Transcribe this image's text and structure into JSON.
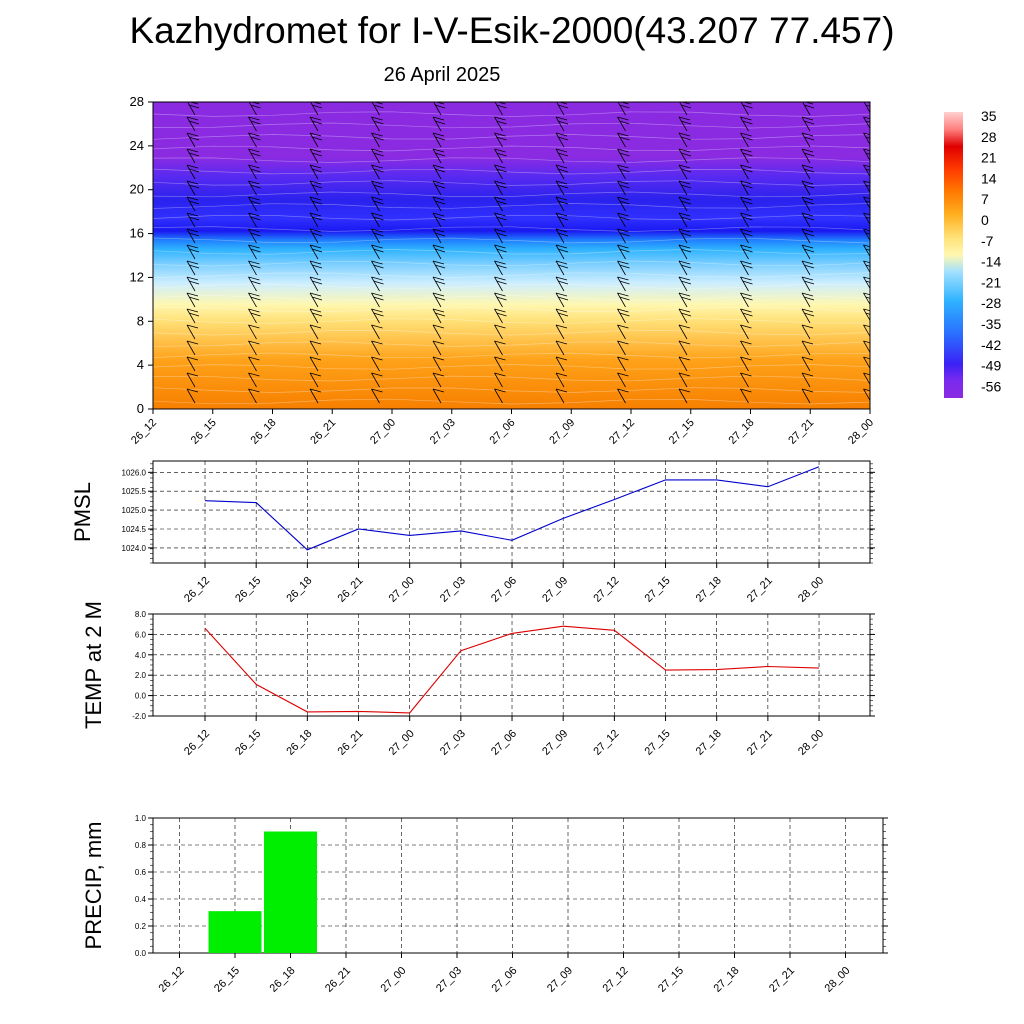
{
  "title": "Kazhydromet for I-V-Esik-2000(43.207 77.457)",
  "subtitle": "26 April 2025",
  "time_labels": [
    "26_12",
    "26_15",
    "26_18",
    "26_21",
    "27_00",
    "27_03",
    "27_06",
    "27_09",
    "27_12",
    "27_15",
    "27_18",
    "27_21",
    "28_00"
  ],
  "chart_data": [
    {
      "type": "heatmap",
      "name": "cross-section",
      "x": [
        "26_12",
        "26_15",
        "26_18",
        "26_21",
        "27_00",
        "27_03",
        "27_06",
        "27_09",
        "27_12",
        "27_15",
        "27_18",
        "27_21",
        "28_00"
      ],
      "y_ticks": [
        0,
        4,
        8,
        12,
        16,
        20,
        24,
        28
      ],
      "ylim": [
        0,
        28
      ],
      "colorbar_labels": [
        "35",
        "28",
        "21",
        "14",
        "7",
        "0",
        "-7",
        "-14",
        "-21",
        "-28",
        "-35",
        "-42",
        "-49",
        "-56"
      ],
      "colors": {
        "warm": "#f77f00",
        "yellow": "#ffe27a",
        "light": "#cdeeff",
        "cyan": "#2fb3ff",
        "blue": "#1a18f0",
        "purple": "#8a2be2"
      },
      "wind_barbs": true
    },
    {
      "type": "line",
      "name": "PMSL",
      "ylabel": "PMSL",
      "x": [
        "26_12",
        "26_15",
        "26_18",
        "26_21",
        "27_00",
        "27_03",
        "27_06",
        "27_09",
        "27_12",
        "27_15",
        "27_18",
        "27_21",
        "28_00"
      ],
      "values": [
        1025.25,
        1025.2,
        1023.95,
        1024.5,
        1024.33,
        1024.45,
        1024.2,
        1024.78,
        1025.28,
        1025.8,
        1025.8,
        1025.62,
        1026.15
      ],
      "ylim": [
        1023.6,
        1026.3
      ],
      "y_ticks": [
        1024.0,
        1024.5,
        1025.0,
        1025.5,
        1026.0
      ],
      "y_tick_labels": [
        "1024.0",
        "1024.5",
        "1025.0",
        "1025.5",
        "1026.0"
      ],
      "color": "#0000cc",
      "grid": true
    },
    {
      "type": "line",
      "name": "TEMP at 2 M",
      "ylabel": "TEMP at 2 M",
      "x": [
        "26_12",
        "26_15",
        "26_18",
        "26_21",
        "27_00",
        "27_03",
        "27_06",
        "27_09",
        "27_12",
        "27_15",
        "27_18",
        "27_21",
        "28_00"
      ],
      "values": [
        6.6,
        1.1,
        -1.6,
        -1.55,
        -1.7,
        4.4,
        6.1,
        6.8,
        6.4,
        2.5,
        2.55,
        2.85,
        2.7
      ],
      "ylim": [
        -2.0,
        8.0
      ],
      "y_ticks": [
        -2.0,
        0.0,
        2.0,
        4.0,
        6.0,
        8.0
      ],
      "y_tick_labels": [
        "-2.0",
        "0.0",
        "2.0",
        "4.0",
        "6.0",
        "8.0"
      ],
      "color": "#dd0000",
      "grid": true
    },
    {
      "type": "bar",
      "name": "PRECIP, mm",
      "ylabel": "PRECIP, mm",
      "categories": [
        "26_12",
        "26_15",
        "26_18",
        "26_21",
        "27_00",
        "27_03",
        "27_06",
        "27_09",
        "27_12",
        "27_15",
        "27_18",
        "27_21",
        "28_00"
      ],
      "values": [
        0,
        0.31,
        0.9,
        0,
        0,
        0,
        0,
        0,
        0,
        0,
        0,
        0,
        0
      ],
      "ylim": [
        0,
        1.0
      ],
      "y_ticks": [
        0.0,
        0.2,
        0.4,
        0.6,
        0.8,
        1.0
      ],
      "y_tick_labels": [
        "0.0",
        "0.2",
        "0.4",
        "0.6",
        "0.8",
        "1.0"
      ],
      "color": "#00ee00",
      "grid": true
    }
  ]
}
